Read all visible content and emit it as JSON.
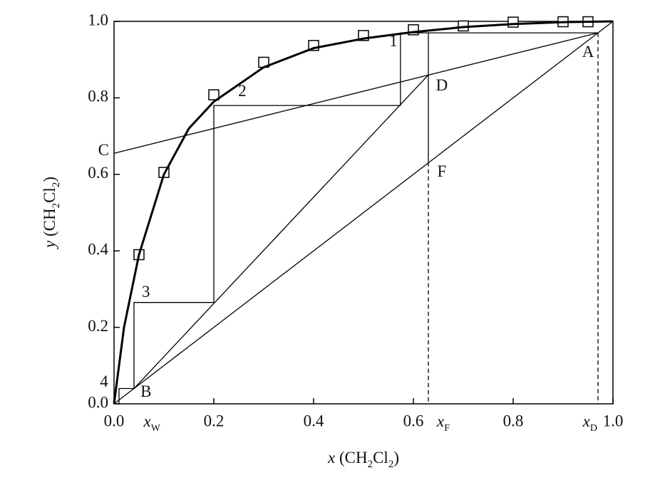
{
  "chart_data": {
    "type": "line",
    "xlim": [
      0,
      1
    ],
    "ylim": [
      0,
      1
    ],
    "xticks": [
      {
        "value": 0,
        "label": "0.0"
      },
      0.2,
      0.4,
      0.6,
      0.8,
      {
        "value": 1,
        "label": "1.0"
      }
    ],
    "yticks": [
      {
        "value": 0,
        "label": "0.0"
      },
      0.2,
      0.4,
      0.6,
      0.8,
      {
        "value": 1,
        "label": "1.0"
      }
    ],
    "xlabel_parts": [
      "x",
      " (CH",
      "2",
      "Cl",
      "2",
      ")"
    ],
    "ylabel_parts": [
      "y",
      " (CH",
      "2",
      "Cl",
      "2",
      ")"
    ],
    "series": [
      {
        "style": "markers",
        "color": "#000000",
        "x": [
          0.05,
          0.1,
          0.2,
          0.3,
          0.4,
          0.5,
          0.6,
          0.7,
          0.8,
          0.9,
          0.95
        ],
        "values": [
          0.39,
          0.605,
          0.808,
          0.893,
          0.937,
          0.963,
          0.978,
          0.988,
          0.998,
          0.999,
          0.999
        ]
      },
      {
        "style": "thick",
        "color": "#000000",
        "x": [
          0,
          0.02,
          0.05,
          0.1,
          0.15,
          0.2,
          0.3,
          0.4,
          0.5,
          0.6,
          0.7,
          0.8,
          0.9,
          1.0
        ],
        "values": [
          0,
          0.2,
          0.39,
          0.6,
          0.72,
          0.79,
          0.88,
          0.93,
          0.955,
          0.972,
          0.985,
          0.993,
          0.998,
          1.0
        ]
      },
      {
        "style": "solid",
        "color": "#000000",
        "x": [
          0,
          1
        ],
        "values": [
          0,
          1
        ]
      },
      {
        "style": "solid",
        "color": "#000000",
        "x": [
          0,
          0.97
        ],
        "values": [
          0.655,
          0.97
        ]
      },
      {
        "style": "solid",
        "color": "#000000",
        "x": [
          0.04,
          0.63
        ],
        "values": [
          0.04,
          0.86
        ]
      },
      {
        "style": "solid",
        "color": "#000000",
        "x": [
          0.97,
          0.574,
          0.574,
          0.2,
          0.2,
          0.04,
          0.04,
          0.01,
          0.01
        ],
        "values": [
          0.97,
          0.97,
          0.78,
          0.78,
          0.265,
          0.265,
          0.04,
          0.04,
          0
        ]
      },
      {
        "style": "solid",
        "color": "#000000",
        "x": [
          0.63,
          0.63
        ],
        "values": [
          0.97,
          0.632
        ]
      },
      {
        "style": "dashed",
        "color": "#000000",
        "x": [
          0.63,
          0.63
        ],
        "values": [
          0.632,
          0
        ]
      },
      {
        "style": "dashed",
        "color": "#000000",
        "x": [
          0.97,
          0.97
        ],
        "values": [
          0.97,
          0
        ]
      }
    ],
    "annotations": [
      {
        "text": "A",
        "x": 0.95,
        "y": 0.916
      },
      {
        "text": "B",
        "x": 0.064,
        "y": 0.028
      },
      {
        "text": "C",
        "x": -0.021,
        "y": 0.659
      },
      {
        "text": "D",
        "x": 0.657,
        "y": 0.829
      },
      {
        "text": "F",
        "x": 0.657,
        "y": 0.603
      },
      {
        "text": "1",
        "x": 0.56,
        "y": 0.944
      },
      {
        "text": "2",
        "x": 0.257,
        "y": 0.814
      },
      {
        "text": "3",
        "x": 0.064,
        "y": 0.289
      },
      {
        "text": "4",
        "x": -0.02,
        "y": 0.054
      },
      {
        "text": "x",
        "sub": "W",
        "x": 0.076,
        "y": -0.05
      },
      {
        "text": "x",
        "sub": "F",
        "x": 0.66,
        "y": -0.05
      },
      {
        "text": "x",
        "sub": "D",
        "x": 0.954,
        "y": -0.05
      }
    ]
  }
}
